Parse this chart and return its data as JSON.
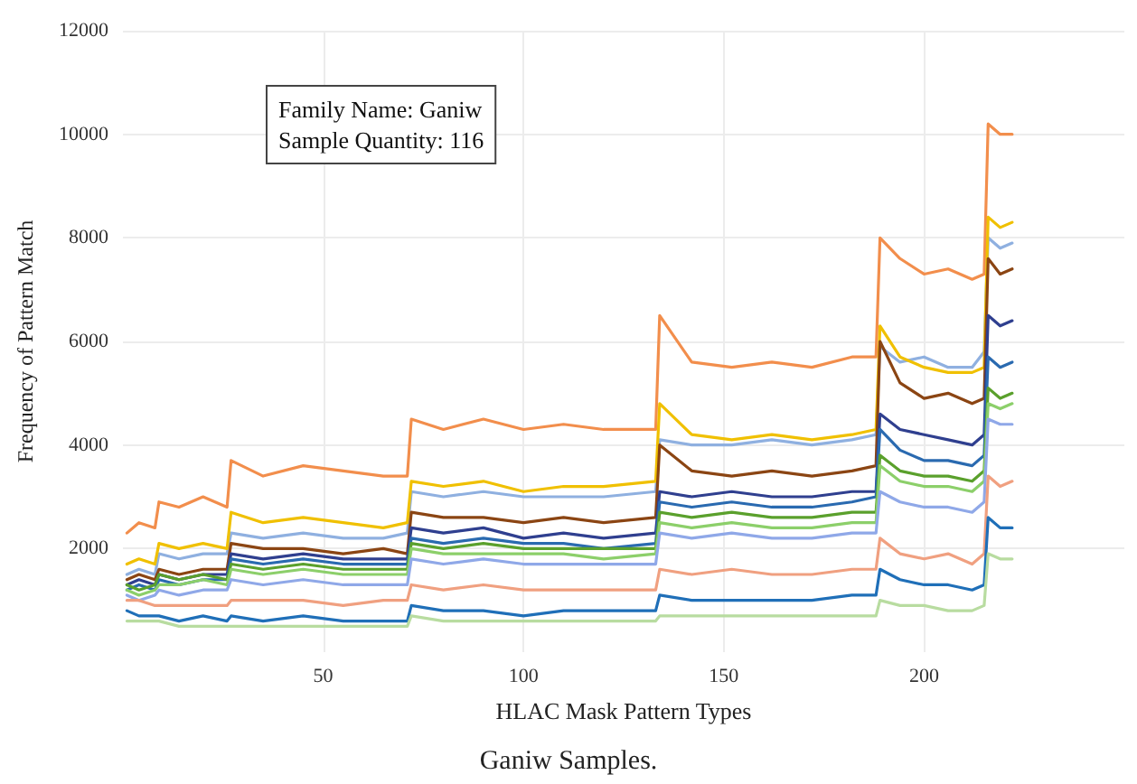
{
  "chart_data": {
    "type": "line",
    "title": "Ganiw Samples.",
    "xlabel": "HLAC Mask Pattern Types",
    "ylabel": "Frequency of Pattern Match",
    "annotations": [
      "Family Name: Ganiw",
      "Sample Quantity: 116"
    ],
    "x": [
      1,
      4,
      8,
      9,
      14,
      20,
      26,
      27,
      35,
      45,
      55,
      65,
      71,
      72,
      80,
      90,
      100,
      110,
      120,
      133,
      134,
      142,
      152,
      162,
      172,
      182,
      188,
      189,
      194,
      200,
      206,
      212,
      215,
      216,
      219,
      222
    ],
    "series": [
      {
        "color": "#f28e4c",
        "values": [
          2300,
          2500,
          2400,
          2900,
          2800,
          3000,
          2800,
          3700,
          3400,
          3600,
          3500,
          3400,
          3400,
          4500,
          4300,
          4500,
          4300,
          4400,
          4300,
          4300,
          6500,
          5600,
          5500,
          5600,
          5500,
          5700,
          5700,
          8000,
          7600,
          7300,
          7400,
          7200,
          7300,
          10200,
          10000,
          10000
        ]
      },
      {
        "color": "#8fb0e0",
        "values": [
          1500,
          1600,
          1500,
          1900,
          1800,
          1900,
          1900,
          2300,
          2200,
          2300,
          2200,
          2200,
          2300,
          3100,
          3000,
          3100,
          3000,
          3000,
          3000,
          3100,
          4100,
          4000,
          4000,
          4100,
          4000,
          4100,
          4200,
          5900,
          5600,
          5700,
          5500,
          5500,
          5800,
          8000,
          7800,
          7900
        ]
      },
      {
        "color": "#f0c000",
        "values": [
          1700,
          1800,
          1700,
          2100,
          2000,
          2100,
          2000,
          2700,
          2500,
          2600,
          2500,
          2400,
          2500,
          3300,
          3200,
          3300,
          3100,
          3200,
          3200,
          3300,
          4800,
          4200,
          4100,
          4200,
          4100,
          4200,
          4300,
          6300,
          5700,
          5500,
          5400,
          5400,
          5500,
          8400,
          8200,
          8300
        ]
      },
      {
        "color": "#8b4513",
        "values": [
          1400,
          1500,
          1400,
          1600,
          1500,
          1600,
          1600,
          2100,
          2000,
          2000,
          1900,
          2000,
          1900,
          2700,
          2600,
          2600,
          2500,
          2600,
          2500,
          2600,
          4000,
          3500,
          3400,
          3500,
          3400,
          3500,
          3600,
          6000,
          5200,
          4900,
          5000,
          4800,
          4900,
          7600,
          7300,
          7400
        ]
      },
      {
        "color": "#2f3f8f",
        "values": [
          1300,
          1400,
          1300,
          1500,
          1400,
          1500,
          1500,
          1900,
          1800,
          1900,
          1800,
          1800,
          1800,
          2400,
          2300,
          2400,
          2200,
          2300,
          2200,
          2300,
          3100,
          3000,
          3100,
          3000,
          3000,
          3100,
          3100,
          4600,
          4300,
          4200,
          4100,
          4000,
          4200,
          6500,
          6300,
          6400
        ]
      },
      {
        "color": "#2a6ab0",
        "values": [
          1200,
          1300,
          1200,
          1400,
          1300,
          1400,
          1400,
          1800,
          1700,
          1800,
          1700,
          1700,
          1700,
          2200,
          2100,
          2200,
          2100,
          2100,
          2000,
          2100,
          2900,
          2800,
          2900,
          2800,
          2800,
          2900,
          3000,
          4300,
          3900,
          3700,
          3700,
          3600,
          3800,
          5700,
          5500,
          5600
        ]
      },
      {
        "color": "#5aa02c",
        "values": [
          1300,
          1200,
          1300,
          1500,
          1400,
          1500,
          1400,
          1700,
          1600,
          1700,
          1600,
          1600,
          1600,
          2100,
          2000,
          2100,
          2000,
          2000,
          2000,
          2000,
          2700,
          2600,
          2700,
          2600,
          2600,
          2700,
          2700,
          3800,
          3500,
          3400,
          3400,
          3300,
          3500,
          5100,
          4900,
          5000
        ]
      },
      {
        "color": "#8ccf6a",
        "values": [
          1200,
          1100,
          1200,
          1300,
          1300,
          1400,
          1300,
          1600,
          1500,
          1600,
          1500,
          1500,
          1500,
          2000,
          1900,
          1900,
          1900,
          1900,
          1800,
          1900,
          2500,
          2400,
          2500,
          2400,
          2400,
          2500,
          2500,
          3600,
          3300,
          3200,
          3200,
          3100,
          3300,
          4800,
          4700,
          4800
        ]
      },
      {
        "color": "#8fa8e8",
        "values": [
          1100,
          1000,
          1100,
          1200,
          1100,
          1200,
          1200,
          1400,
          1300,
          1400,
          1300,
          1300,
          1300,
          1800,
          1700,
          1800,
          1700,
          1700,
          1700,
          1700,
          2300,
          2200,
          2300,
          2200,
          2200,
          2300,
          2300,
          3100,
          2900,
          2800,
          2800,
          2700,
          2900,
          4500,
          4400,
          4400
        ]
      },
      {
        "color": "#f0a080",
        "values": [
          1000,
          1000,
          900,
          900,
          900,
          900,
          900,
          1000,
          1000,
          1000,
          900,
          1000,
          1000,
          1300,
          1200,
          1300,
          1200,
          1200,
          1200,
          1200,
          1600,
          1500,
          1600,
          1500,
          1500,
          1600,
          1600,
          2200,
          1900,
          1800,
          1900,
          1700,
          1900,
          3400,
          3200,
          3300
        ]
      },
      {
        "color": "#1f6fb8",
        "values": [
          800,
          700,
          700,
          700,
          600,
          700,
          600,
          700,
          600,
          700,
          600,
          600,
          600,
          900,
          800,
          800,
          700,
          800,
          800,
          800,
          1100,
          1000,
          1000,
          1000,
          1000,
          1100,
          1100,
          1600,
          1400,
          1300,
          1300,
          1200,
          1300,
          2600,
          2400,
          2400
        ]
      },
      {
        "color": "#b8dca0",
        "values": [
          600,
          600,
          600,
          600,
          500,
          500,
          500,
          500,
          500,
          500,
          500,
          500,
          500,
          700,
          600,
          600,
          600,
          600,
          600,
          600,
          700,
          700,
          700,
          700,
          700,
          700,
          700,
          1000,
          900,
          900,
          800,
          800,
          900,
          1900,
          1800,
          1800
        ]
      }
    ],
    "xlim": [
      0,
      250
    ],
    "xticks": [
      50,
      100,
      150,
      200
    ],
    "ylim": [
      0,
      12000
    ],
    "yticks": [
      2000,
      4000,
      6000,
      8000,
      10000,
      12000
    ],
    "grid": true,
    "marker": "none",
    "line_style": "solid"
  }
}
